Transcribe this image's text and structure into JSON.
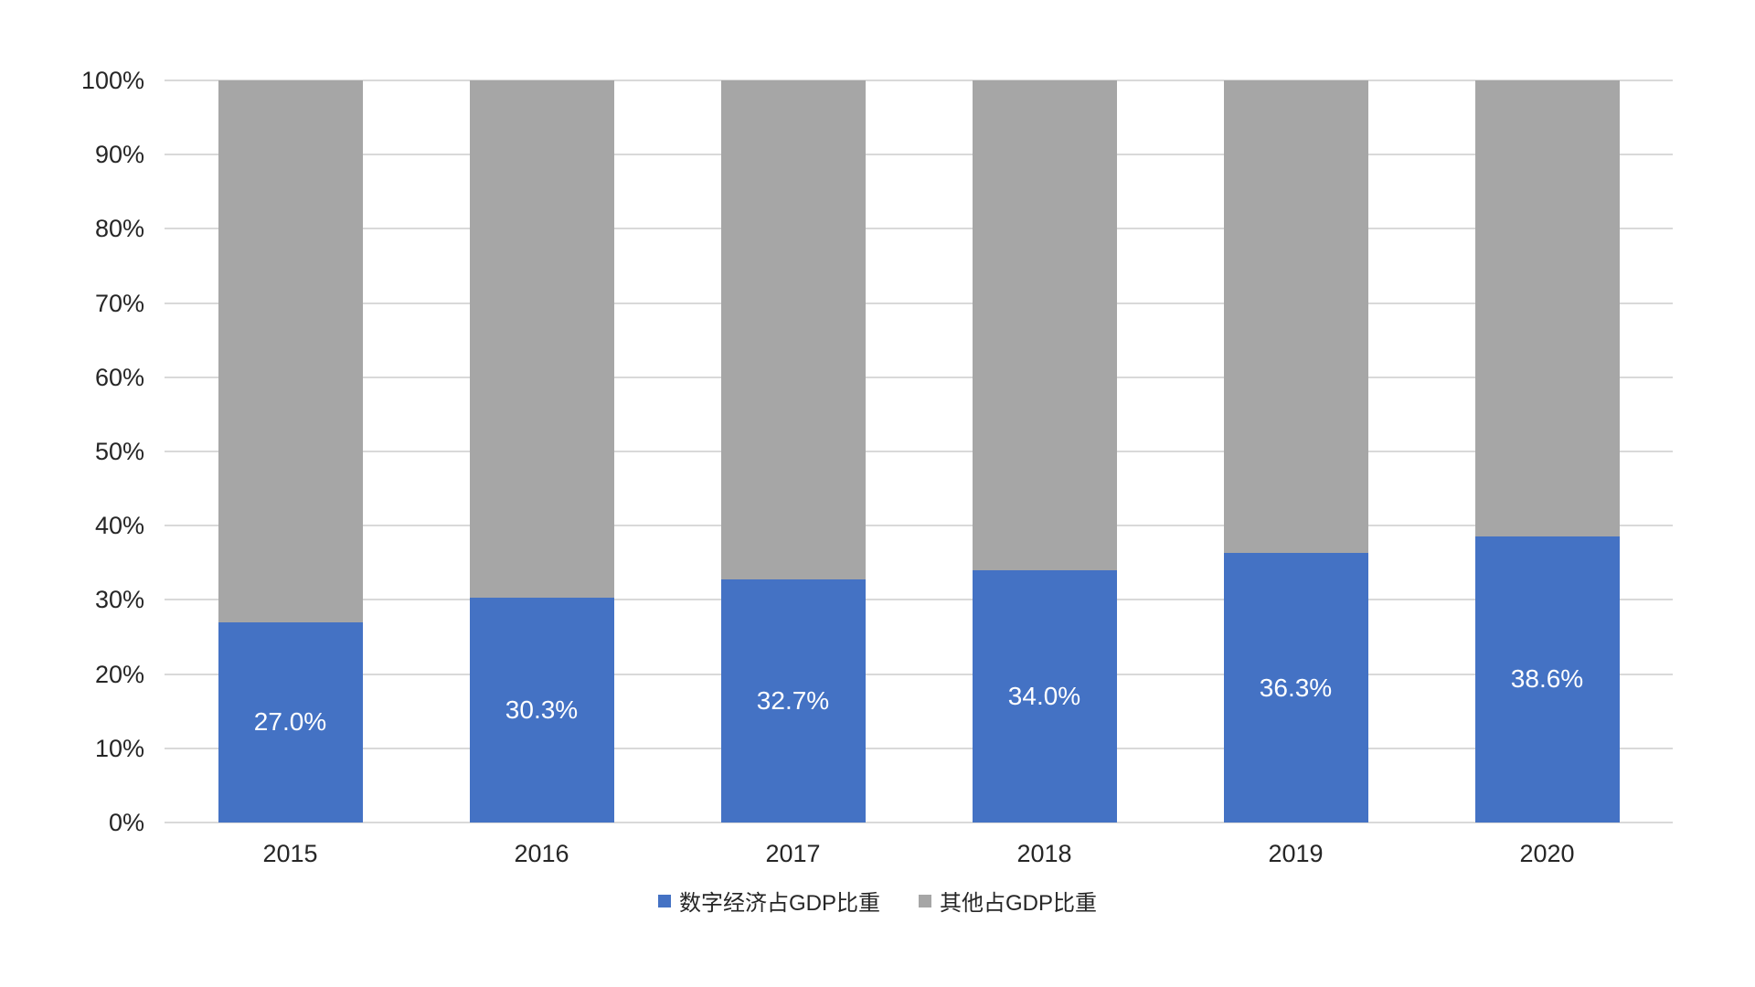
{
  "chart_data": {
    "type": "bar",
    "subtype": "stacked-100-percent-column",
    "title": "",
    "categories": [
      "2015",
      "2016",
      "2017",
      "2018",
      "2019",
      "2020"
    ],
    "series": [
      {
        "name": "数字经济占GDP比重",
        "color": "#4472C4",
        "values": [
          27.0,
          30.3,
          32.7,
          34.0,
          36.3,
          38.6
        ],
        "data_labels": [
          "27.0%",
          "30.3%",
          "32.7%",
          "34.0%",
          "36.3%",
          "38.6%"
        ],
        "data_label_color": "#FFFFFF"
      },
      {
        "name": "其他占GDP比重",
        "color": "#A6A6A6",
        "values": [
          73.0,
          69.7,
          67.3,
          66.0,
          63.7,
          61.4
        ],
        "data_labels": null,
        "data_label_color": null
      }
    ],
    "x_axis": {
      "tick_labels": [
        "2015",
        "2016",
        "2017",
        "2018",
        "2019",
        "2020"
      ]
    },
    "y_axis": {
      "min": 0,
      "max": 100,
      "step": 10,
      "tick_labels": [
        "0%",
        "10%",
        "20%",
        "30%",
        "40%",
        "50%",
        "60%",
        "70%",
        "80%",
        "90%",
        "100%"
      ]
    },
    "grid": true,
    "legend_position": "bottom",
    "legend": {
      "items": [
        {
          "label": "数字经济占GDP比重",
          "color": "#4472C4"
        },
        {
          "label": "其他占GDP比重",
          "color": "#A6A6A6"
        }
      ]
    },
    "colors": {
      "background": "#FFFFFF",
      "gridline": "#D9D9D9",
      "axis_text": "#262626",
      "series_digital": "#4472C4",
      "series_other": "#A6A6A6",
      "bar_label_text": "#FFFFFF"
    }
  }
}
